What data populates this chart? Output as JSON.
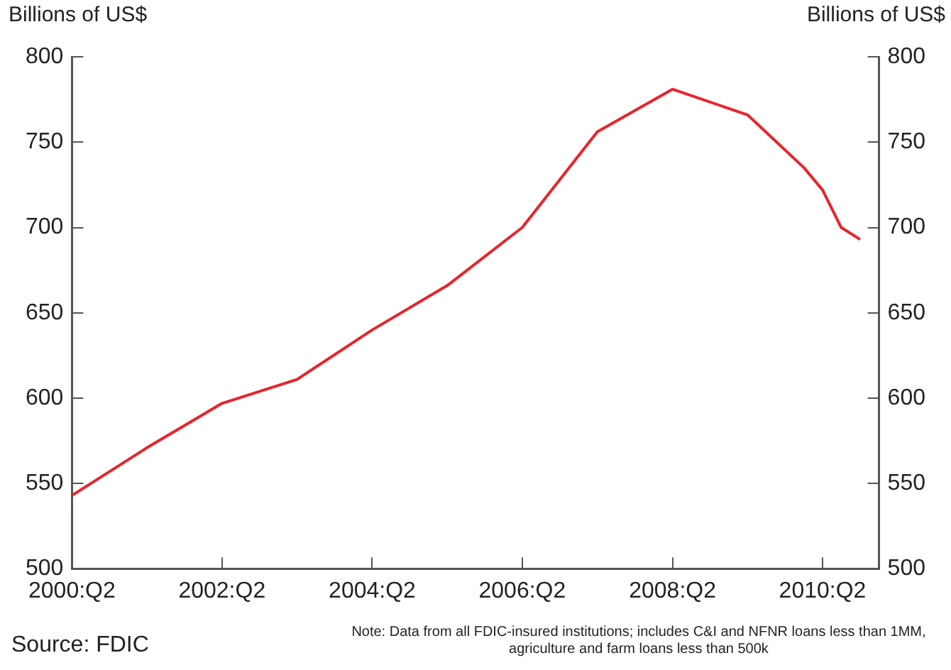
{
  "chart_data": {
    "type": "line",
    "ylabel": "Billions of US$",
    "y2label": "Billions of US$",
    "x": [
      "2000-04",
      "2001-04",
      "2002-04",
      "2003-04",
      "2004-04",
      "2005-04",
      "2006-04",
      "2007-04",
      "2008-04",
      "2009-04",
      "2010-01",
      "2010-04",
      "2010-07",
      "2010-10"
    ],
    "series": [
      {
        "color": "#e8242b",
        "values": [
          543,
          571,
          597,
          611,
          640,
          666,
          700,
          756,
          781,
          766,
          735,
          722,
          700,
          693
        ]
      }
    ],
    "xlim": [
      "2000-04",
      "2011-01"
    ],
    "xticks": [
      {
        "value": "2000-04",
        "label": "2000:Q2"
      },
      {
        "value": "2002-04",
        "label": "2002:Q2"
      },
      {
        "value": "2004-04",
        "label": "2004:Q2"
      },
      {
        "value": "2006-04",
        "label": "2006:Q2"
      },
      {
        "value": "2008-04",
        "label": "2008:Q2"
      },
      {
        "value": "2010-04",
        "label": "2010:Q2"
      }
    ],
    "ylim": [
      500,
      800
    ],
    "yticks": [
      500,
      550,
      600,
      650,
      700,
      750,
      800
    ],
    "y2lim": [
      500,
      800
    ],
    "y2ticks": [
      500,
      550,
      600,
      650,
      700,
      750,
      800
    ],
    "grid": false,
    "legend": false,
    "marker": "none",
    "line_style": "solid",
    "annotations": [
      "Source: FDIC",
      "Note: Data from all FDIC-insured institutions; includes C&I and NFNR loans less than 1MM, agriculture and farm loans less than 500k"
    ]
  }
}
